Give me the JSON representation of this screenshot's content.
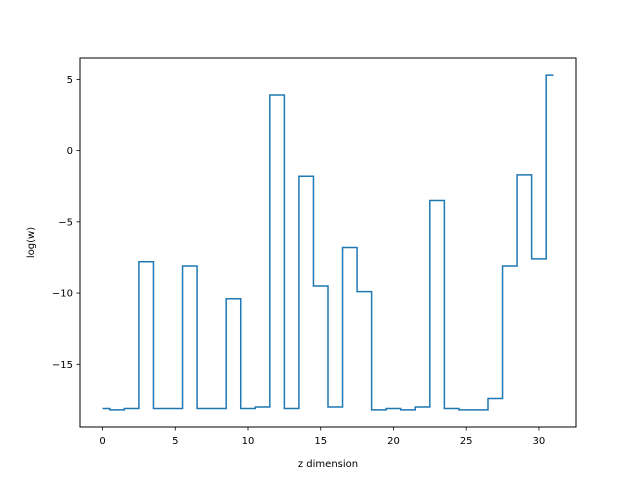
{
  "chart_data": {
    "type": "line",
    "drawstyle": "steps-mid",
    "xlabel": "z dimension",
    "ylabel": "log(w)",
    "xlim": [
      -1.55,
      32.55
    ],
    "ylim": [
      -19.4,
      6.5
    ],
    "xticks": [
      0,
      5,
      10,
      15,
      20,
      25,
      30
    ],
    "xtick_labels": [
      "0",
      "5",
      "10",
      "15",
      "20",
      "25",
      "30"
    ],
    "yticks": [
      5,
      0,
      -5,
      -10,
      -15
    ],
    "ytick_labels": [
      "5",
      "0",
      "−5",
      "−10",
      "−15"
    ],
    "grid": false,
    "series": [
      {
        "color": "#1f77b4",
        "x": [
          0,
          1,
          2,
          3,
          4,
          5,
          6,
          7,
          8,
          9,
          10,
          11,
          12,
          13,
          14,
          15,
          16,
          17,
          18,
          19,
          20,
          21,
          22,
          23,
          24,
          25,
          26,
          27,
          28,
          29,
          30,
          31
        ],
        "values": [
          -18.1,
          -18.2,
          -18.1,
          -7.8,
          -18.1,
          -18.1,
          -8.1,
          -18.1,
          -18.1,
          -10.4,
          -18.1,
          -18.0,
          3.9,
          -18.1,
          -1.8,
          -9.5,
          -18.0,
          -6.8,
          -9.9,
          -18.2,
          -18.1,
          -18.2,
          -18.0,
          -3.5,
          -18.1,
          -18.2,
          -18.2,
          -17.4,
          -8.1,
          -1.7,
          -7.6,
          5.3
        ]
      }
    ]
  }
}
